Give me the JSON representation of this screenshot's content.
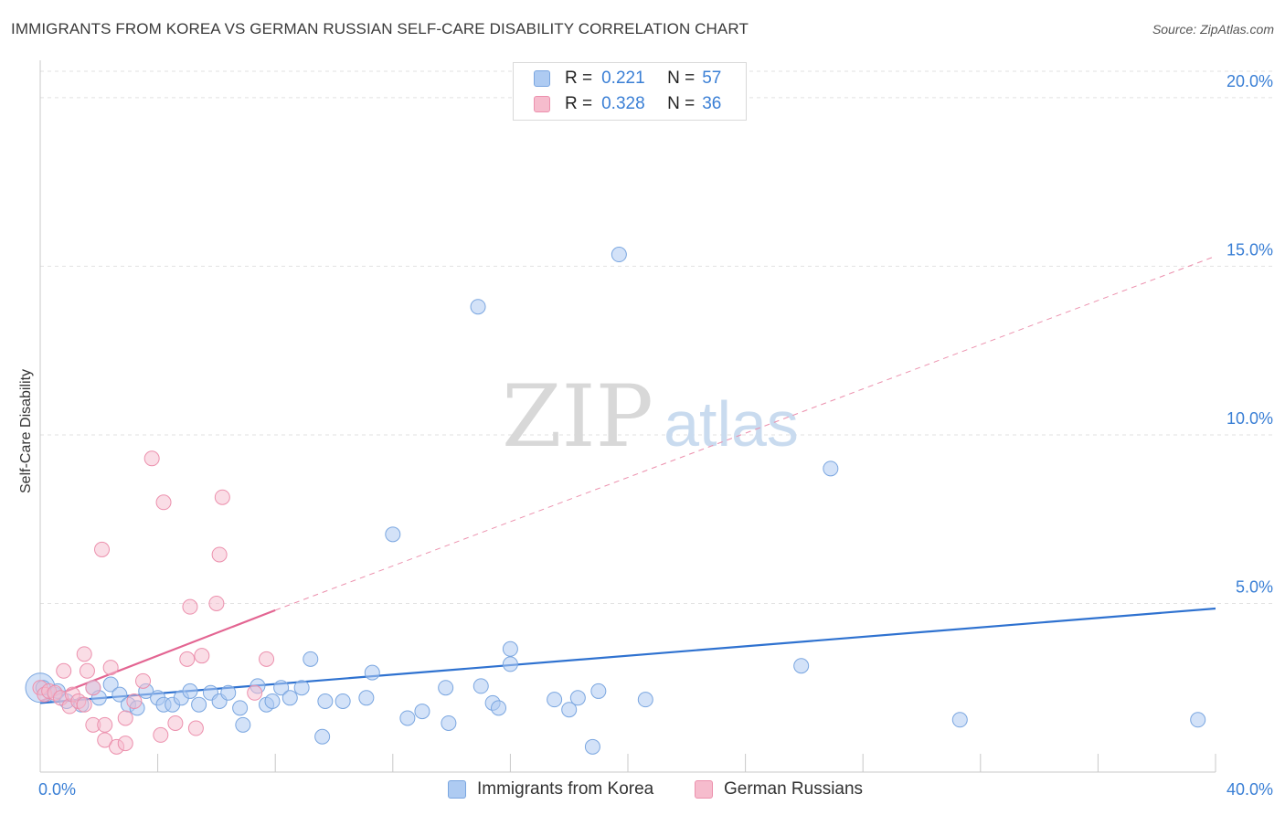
{
  "title": "IMMIGRANTS FROM KOREA VS GERMAN RUSSIAN SELF-CARE DISABILITY CORRELATION CHART",
  "source": "Source: ZipAtlas.com",
  "watermark": {
    "zip": "ZIP",
    "atlas": "atlas"
  },
  "legend": {
    "r_label": "R =",
    "n_label": "N =",
    "series": [
      {
        "name": "Immigrants from Korea",
        "r": "0.221",
        "n": "57"
      },
      {
        "name": "German Russians",
        "r": "0.328",
        "n": "36"
      }
    ]
  },
  "colors": {
    "blue_fill": "#aecbf2",
    "blue_stroke": "#7aa6e0",
    "blue_line": "#2f72d0",
    "pink_fill": "#f6bccd",
    "pink_stroke": "#ec90ad",
    "pink_line": "#e36592",
    "axis_label": "#3a7fd5",
    "grid": "#e2e2e2"
  },
  "chart_data": {
    "type": "scatter",
    "title": "IMMIGRANTS FROM KOREA VS GERMAN RUSSIAN SELF-CARE DISABILITY CORRELATION CHART",
    "xlabel": "",
    "ylabel": "Self-Care Disability",
    "xlim": [
      0,
      40
    ],
    "ylim": [
      0,
      21
    ],
    "x_tick_labels": [
      "0.0%",
      "40.0%"
    ],
    "y_ticks": [
      5,
      10,
      15,
      20
    ],
    "y_tick_labels": [
      "5.0%",
      "10.0%",
      "15.0%",
      "20.0%"
    ],
    "series": [
      {
        "name": "Immigrants from Korea",
        "color": "#aecbf2",
        "points": [
          [
            0.1,
            2.5
          ],
          [
            0.5,
            2.3
          ],
          [
            0.6,
            2.4
          ],
          [
            0.9,
            2.1
          ],
          [
            1.4,
            2.0
          ],
          [
            1.8,
            2.5
          ],
          [
            2.0,
            2.2
          ],
          [
            2.4,
            2.6
          ],
          [
            2.7,
            2.3
          ],
          [
            3.0,
            2.0
          ],
          [
            3.3,
            1.9
          ],
          [
            3.6,
            2.4
          ],
          [
            4.0,
            2.2
          ],
          [
            4.2,
            2.0
          ],
          [
            4.5,
            2.0
          ],
          [
            4.8,
            2.2
          ],
          [
            5.1,
            2.4
          ],
          [
            5.4,
            2.0
          ],
          [
            5.8,
            2.35
          ],
          [
            6.1,
            2.1
          ],
          [
            6.4,
            2.35
          ],
          [
            6.8,
            1.9
          ],
          [
            6.9,
            1.4
          ],
          [
            7.4,
            2.55
          ],
          [
            7.7,
            2.0
          ],
          [
            7.9,
            2.1
          ],
          [
            8.2,
            2.5
          ],
          [
            8.5,
            2.2
          ],
          [
            8.9,
            2.5
          ],
          [
            9.2,
            3.35
          ],
          [
            9.6,
            1.05
          ],
          [
            9.7,
            2.1
          ],
          [
            10.3,
            2.1
          ],
          [
            11.1,
            2.2
          ],
          [
            11.3,
            2.95
          ],
          [
            12.0,
            7.05
          ],
          [
            12.5,
            1.6
          ],
          [
            13.0,
            1.8
          ],
          [
            13.8,
            2.5
          ],
          [
            13.9,
            1.45
          ],
          [
            15.0,
            2.55
          ],
          [
            14.9,
            13.8
          ],
          [
            15.4,
            2.05
          ],
          [
            15.6,
            1.9
          ],
          [
            16.0,
            3.2
          ],
          [
            16.0,
            3.65
          ],
          [
            17.5,
            2.15
          ],
          [
            18.0,
            1.85
          ],
          [
            18.3,
            2.2
          ],
          [
            18.8,
            0.75
          ],
          [
            19.0,
            2.4
          ],
          [
            19.7,
            15.35
          ],
          [
            20.6,
            2.15
          ],
          [
            25.9,
            3.15
          ],
          [
            26.9,
            9.0
          ],
          [
            31.3,
            1.55
          ],
          [
            39.4,
            1.55
          ]
        ],
        "trend": {
          "x": [
            0,
            40
          ],
          "y": [
            2.05,
            4.85
          ]
        }
      },
      {
        "name": "German Russians",
        "color": "#f6bccd",
        "points": [
          [
            0.0,
            2.5
          ],
          [
            0.15,
            2.3
          ],
          [
            0.3,
            2.4
          ],
          [
            0.5,
            2.35
          ],
          [
            0.7,
            2.2
          ],
          [
            0.8,
            3.0
          ],
          [
            1.0,
            1.95
          ],
          [
            1.1,
            2.3
          ],
          [
            1.3,
            2.1
          ],
          [
            1.5,
            2.0
          ],
          [
            1.5,
            3.5
          ],
          [
            1.6,
            3.0
          ],
          [
            1.8,
            2.5
          ],
          [
            1.8,
            1.4
          ],
          [
            2.1,
            6.6
          ],
          [
            2.2,
            0.95
          ],
          [
            2.2,
            1.4
          ],
          [
            2.4,
            3.1
          ],
          [
            2.6,
            0.75
          ],
          [
            2.9,
            0.85
          ],
          [
            2.9,
            1.6
          ],
          [
            3.2,
            2.1
          ],
          [
            3.5,
            2.7
          ],
          [
            3.8,
            9.3
          ],
          [
            4.1,
            1.1
          ],
          [
            4.2,
            8.0
          ],
          [
            4.6,
            1.45
          ],
          [
            5.0,
            3.35
          ],
          [
            5.1,
            4.9
          ],
          [
            5.3,
            1.3
          ],
          [
            5.5,
            3.45
          ],
          [
            6.0,
            5.0
          ],
          [
            6.1,
            6.45
          ],
          [
            6.2,
            8.15
          ],
          [
            7.3,
            2.35
          ],
          [
            7.7,
            3.35
          ]
        ],
        "trend": {
          "x": [
            0,
            8
          ],
          "y": [
            2.1,
            4.8
          ]
        },
        "trend_extended": {
          "x": [
            8,
            40
          ],
          "y": [
            4.8,
            15.3
          ]
        }
      }
    ],
    "legend_position": "top-center",
    "grid": true
  }
}
